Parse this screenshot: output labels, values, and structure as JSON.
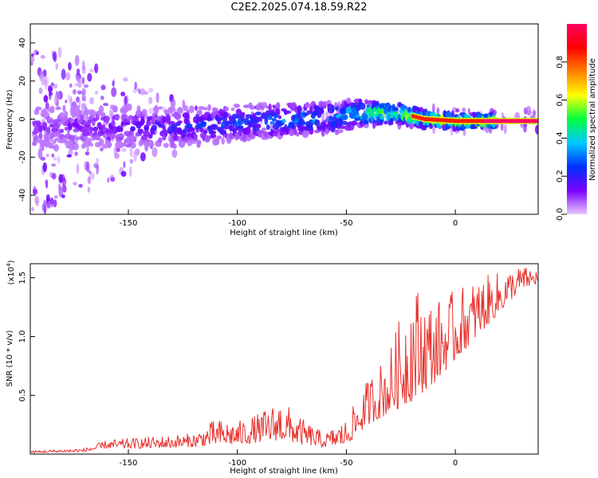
{
  "page": {
    "title": "C2E2.2025.074.18.59.R22"
  },
  "chart_data": [
    {
      "type": "heatmap",
      "title": "C2E2.2025.074.18.59.R22",
      "xlabel": "Height of straight line (km)",
      "ylabel": "Frequency (Hz)",
      "xlim": [
        -195,
        38
      ],
      "ylim": [
        -50,
        50
      ],
      "xticks": [
        -150,
        -100,
        -50,
        0
      ],
      "yticks": [
        -40,
        -20,
        0,
        20,
        40
      ],
      "colorbar": {
        "label": "Normalized spectral amplitude",
        "range": [
          0.0,
          1.0
        ],
        "ticks": [
          "0.0",
          "0.2",
          "0.4",
          "0.6",
          "0.8"
        ],
        "colors": [
          "#e8c8ff",
          "#7a00ff",
          "#0030ff",
          "#00c8ff",
          "#00ff40",
          "#ffff00",
          "#ff8000",
          "#ff0000",
          "#ff0060"
        ]
      },
      "ridge": {
        "x": [
          -190,
          -170,
          -150,
          -130,
          -110,
          -90,
          -70,
          -55,
          -45,
          -35,
          -25,
          -15,
          0,
          15,
          38
        ],
        "frequency": [
          -5,
          -4,
          -4,
          -4,
          -3,
          -1,
          0,
          1,
          3,
          3,
          3,
          0,
          -1,
          -1,
          -1
        ],
        "amplitude": [
          0.12,
          0.15,
          0.18,
          0.22,
          0.28,
          0.33,
          0.38,
          0.42,
          0.55,
          0.62,
          0.7,
          0.85,
          0.9,
          0.95,
          1.0
        ]
      }
    },
    {
      "type": "line",
      "xlabel": "Height of straight line (km)",
      "ylabel": "SNR (10 * v/v)",
      "multiplier": "(x10",
      "multiplier_exp": "4",
      "multiplier_close": ")",
      "xlim": [
        -195,
        38
      ],
      "ylim": [
        0,
        1.62
      ],
      "xticks": [
        -150,
        -100,
        -50,
        0
      ],
      "yticks": [
        0.5,
        1.0,
        1.5
      ],
      "ytick_labels": [
        "0.5",
        "1.0",
        "1.5"
      ],
      "color": "#e8302b",
      "envelope": {
        "x": [
          -195,
          -170,
          -160,
          -140,
          -120,
          -110,
          -100,
          -90,
          -80,
          -70,
          -60,
          -50,
          -40,
          -30,
          -25,
          -20,
          -10,
          0,
          10,
          20,
          30,
          38
        ],
        "baseline": [
          0.01,
          0.02,
          0.05,
          0.05,
          0.06,
          0.08,
          0.08,
          0.1,
          0.12,
          0.08,
          0.06,
          0.08,
          0.25,
          0.35,
          0.4,
          0.45,
          0.6,
          0.8,
          1.0,
          1.2,
          1.4,
          1.45
        ],
        "peak": [
          0.03,
          0.05,
          0.12,
          0.15,
          0.18,
          0.3,
          0.28,
          0.35,
          0.47,
          0.3,
          0.18,
          0.3,
          0.65,
          0.9,
          1.2,
          1.5,
          1.3,
          1.4,
          1.5,
          1.55,
          1.6,
          1.58
        ]
      }
    }
  ]
}
